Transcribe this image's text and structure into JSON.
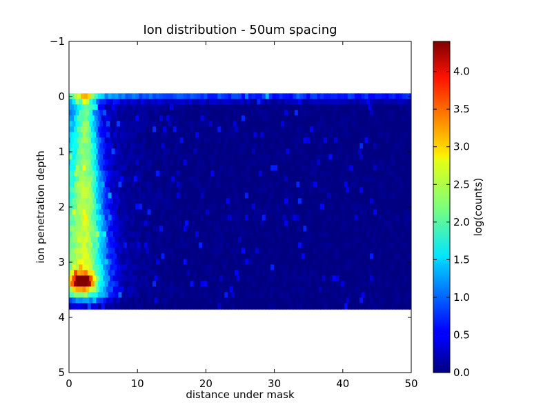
{
  "chart_data": {
    "type": "heatmap",
    "subtype": "hexbin",
    "title": "Ion distribution - 50um spacing",
    "xlabel": "distance under mask",
    "ylabel": "ion penetration depth",
    "xlim": [
      0,
      50
    ],
    "ylim": [
      -1,
      5
    ],
    "y_inverted": true,
    "x_ticks": [
      "0",
      "10",
      "20",
      "30",
      "40",
      "50"
    ],
    "y_ticks": [
      "−1",
      "0",
      "1",
      "2",
      "3",
      "4",
      "5"
    ],
    "colorbar": {
      "label": "log(counts)",
      "min": 0.0,
      "max": 4.4,
      "ticks": [
        "0.0",
        "0.5",
        "1.0",
        "1.5",
        "2.0",
        "2.5",
        "3.0",
        "3.5",
        "4.0"
      ],
      "colormap": "jet"
    },
    "data_extent": {
      "x": [
        0,
        50
      ],
      "depth": [
        0,
        3.8
      ]
    },
    "features": {
      "surface_band": {
        "depth": 0.05,
        "level": 1.0
      },
      "peak": {
        "x": 2,
        "depth": 3.35,
        "level": 4.3
      },
      "plume": {
        "x_center": 2.5,
        "level_near_surface": 1.5,
        "level_mid": 1.9
      },
      "background_level": 0.0
    },
    "grid": false
  }
}
